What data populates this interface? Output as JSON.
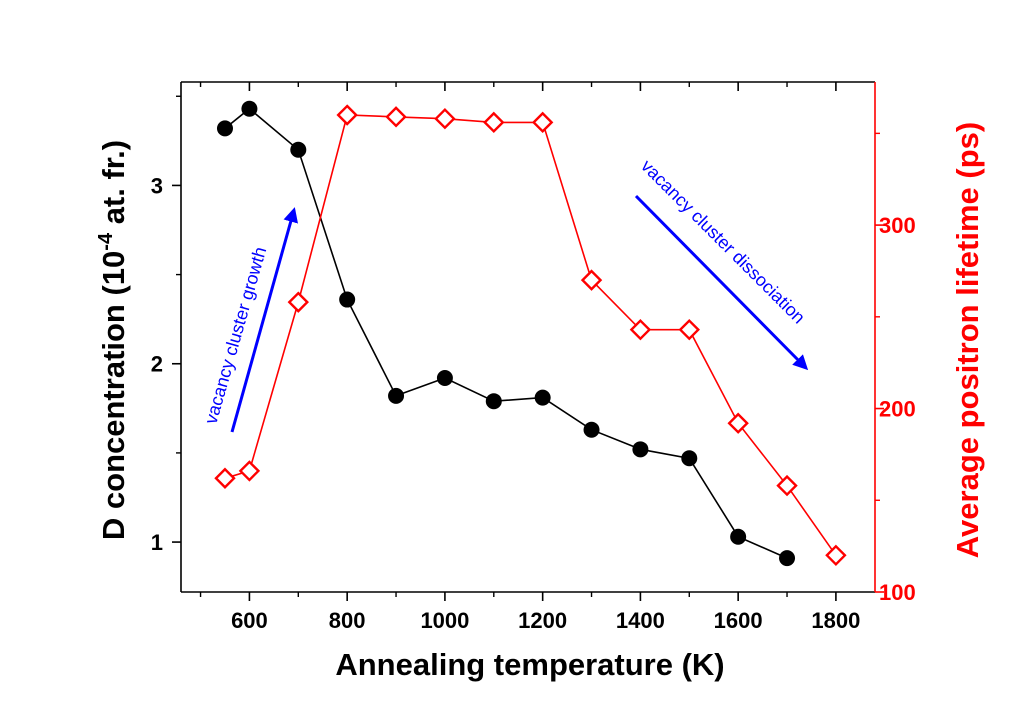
{
  "chart_data": {
    "type": "line",
    "xlabel": "Annealing temperature (K)",
    "xlim": [
      460,
      1880
    ],
    "xticks": [
      600,
      800,
      1000,
      1200,
      1400,
      1600,
      1800
    ],
    "xticks_minor": [
      500,
      700,
      900,
      1100,
      1300,
      1500,
      1700
    ],
    "left_axis": {
      "label_main": "D concentration (10",
      "label_sup": "-4",
      "label_end": " at. fr.)",
      "ylim": [
        0.72,
        3.58
      ],
      "ticks": [
        1,
        2,
        3
      ],
      "minor_ticks": [
        1.5,
        2.5,
        3.5
      ],
      "color": "#000000"
    },
    "right_axis": {
      "label": "Average positron lifetime (ps)",
      "ylim": [
        100,
        378
      ],
      "ticks": [
        100,
        200,
        300
      ],
      "minor_ticks": [
        150,
        250,
        350
      ],
      "color": "#ff0000"
    },
    "series": [
      {
        "axis": "left",
        "marker": "filled-circle",
        "color": "#000000",
        "x": [
          550,
          600,
          700,
          800,
          900,
          1000,
          1100,
          1200,
          1300,
          1400,
          1500,
          1600,
          1700
        ],
        "y": [
          3.32,
          3.43,
          3.2,
          2.36,
          1.82,
          1.92,
          1.79,
          1.81,
          1.63,
          1.52,
          1.47,
          1.03,
          0.91
        ]
      },
      {
        "axis": "right",
        "marker": "open-diamond",
        "color": "#ff0000",
        "x": [
          550,
          600,
          700,
          800,
          900,
          1000,
          1100,
          1200,
          1300,
          1400,
          1500,
          1600,
          1700,
          1800
        ],
        "y": [
          162,
          166,
          258,
          360,
          359,
          358,
          356,
          356,
          270,
          243,
          243,
          192,
          158,
          120
        ]
      }
    ],
    "annotations": [
      {
        "text": "vacancy cluster growth",
        "color": "#0000ff"
      },
      {
        "text": "vacancy cluster dissociation",
        "color": "#0000ff"
      }
    ]
  }
}
